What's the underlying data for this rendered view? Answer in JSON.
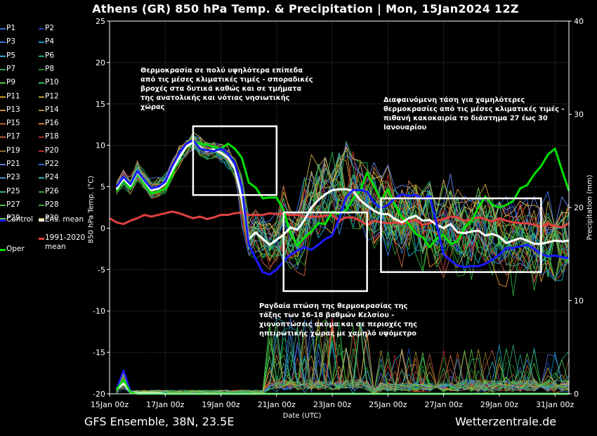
{
  "header": {
    "title": "Athens  (GR)  850 hPa Temp. & Precipitation | Mon, 15Jan2024 12Z"
  },
  "footer": {
    "model": "GFS Ensemble, 38N, 23.5E",
    "site": "Wetterzentrale.de"
  },
  "legend": {
    "members": [
      "P1",
      "P2",
      "P3",
      "P4",
      "P5",
      "P6",
      "P7",
      "P8",
      "P9",
      "P10",
      "P11",
      "P12",
      "P13",
      "P14",
      "P15",
      "P16",
      "P17",
      "P18",
      "P19",
      "P20",
      "P21",
      "P22",
      "P23",
      "P24",
      "P25",
      "P26",
      "P27",
      "P28",
      "P29",
      "P30"
    ],
    "member_colors": [
      "#4169e1",
      "#1e3caa",
      "#3a6fd8",
      "#0fa0c8",
      "#2aa9c9",
      "#1aa38a",
      "#22a34a",
      "#1e8c1e",
      "#4bbf3b",
      "#2fbf5a",
      "#c9a227",
      "#b59a3a",
      "#d48a2a",
      "#a8823a",
      "#c0602a",
      "#d07b3f",
      "#b85a3e",
      "#b03030",
      "#8c6b2a",
      "#b8282c",
      "#5c7bd8",
      "#2c6fd2",
      "#3f8fd2",
      "#2bb0b8",
      "#3bb07a",
      "#2a9f3e",
      "#4ec04e",
      "#3aaa3a",
      "#62c24a",
      "#c9b25a"
    ],
    "control": "Control",
    "ens_mean": "Ens. mean",
    "climate": "1991-2020\nmean",
    "oper": "Oper"
  },
  "annotations": [
    "Θερμοκρασία σε πολύ υψηλότερα επίπεδα\nαπό τις μέσες κλιματικές τιμές - σποραδικές\nβροχές στα δυτικά καθώς και σε τμήματα\nτης ανατολικής και νότιας νησιωτικής\nχώρας",
    "Διαφαινόμενη τάση για χαμηλότερες\nθερμοκρασίες από τις μέσες κλιματικές τιμές -\nπιθανή κακοκαιρία το διάστημα 27 έως 30\nΙανουαρίου",
    "Ραγδαία πτώση της θερμοκρασίας της\nτάξης των 16-18 βαθμών Κελσίου -\nχιονοπτώσεις ακόμα και σε περιοχές της\nηπειρωτικής χώρας με χαμηλό υψόμετρο"
  ],
  "chart_data": {
    "type": "line",
    "title": "Athens  (GR)  850 hPa Temp. & Precipitation | Mon, 15Jan2024 12Z",
    "xlabel": "Date (UTC)",
    "ylabel": "850 hPa Temp. (°C)",
    "y2label": "Precipitation (mm)",
    "x_range_hours": [
      0,
      396
    ],
    "x_ticks": [
      "15Jan 00z",
      "17Jan 00z",
      "19Jan 00z",
      "21Jan 00z",
      "23Jan 00z",
      "25Jan 00z",
      "27Jan 00z",
      "29Jan 00z",
      "31Jan 00z"
    ],
    "x_tick_hours": [
      0,
      48,
      96,
      144,
      192,
      240,
      288,
      336,
      384
    ],
    "ylim": [
      -20,
      25
    ],
    "y_ticks": [
      -20,
      -15,
      -10,
      -5,
      0,
      5,
      10,
      15,
      20,
      25
    ],
    "y2lim": [
      0,
      40
    ],
    "y2_ticks": [
      0,
      10,
      20,
      30,
      40
    ],
    "grid": true,
    "series": [
      {
        "name": "Ens. mean",
        "color": "#ffffff",
        "x": [
          6,
          12,
          18,
          24,
          30,
          36,
          42,
          48,
          54,
          60,
          66,
          72,
          78,
          84,
          90,
          96,
          102,
          108,
          114,
          120,
          126,
          132,
          138,
          144,
          150,
          156,
          162,
          168,
          174,
          180,
          186,
          192,
          198,
          204,
          210,
          216,
          222,
          228,
          234,
          240,
          246,
          252,
          258,
          264,
          270,
          276,
          282,
          288,
          294,
          300,
          306,
          312,
          318,
          324,
          330,
          336,
          342,
          348,
          354,
          360,
          366,
          372,
          378,
          384,
          390,
          396
        ],
        "y": [
          4.7,
          6,
          5.1,
          6.8,
          5.7,
          4.6,
          4.8,
          5.4,
          7,
          8.5,
          9.8,
          10.4,
          9.8,
          9.3,
          9.5,
          9.1,
          8.5,
          7.2,
          3.5,
          -1.3,
          -0.5,
          -1.3,
          -2,
          -1.4,
          -0.8,
          0.1,
          -0.2,
          1,
          2.5,
          3.4,
          4.1,
          4.6,
          4.7,
          4.7,
          4.5,
          3.4,
          2.7,
          2.1,
          1.7,
          1.7,
          1.1,
          0.7,
          1.2,
          1.5,
          0.9,
          1,
          0.4,
          0,
          0.5,
          -0.5,
          -0.6,
          -0.4,
          -0.3,
          -0.9,
          -0.7,
          -1,
          -1.8,
          -1.5,
          -1.2,
          -1.5,
          -1.9,
          -1.9,
          -1.7,
          -1.5,
          -1.6,
          -1.5
        ]
      },
      {
        "name": "Control",
        "color": "#1a1aff",
        "x": [
          6,
          12,
          18,
          24,
          30,
          36,
          42,
          48,
          54,
          60,
          66,
          72,
          78,
          84,
          90,
          96,
          102,
          108,
          114,
          120,
          126,
          132,
          138,
          144,
          150,
          156,
          162,
          168,
          174,
          180,
          186,
          192,
          198,
          204,
          210,
          216,
          222,
          228,
          234,
          240,
          246,
          252,
          258,
          264,
          270,
          276,
          282,
          288,
          294,
          300,
          306,
          312,
          318,
          324,
          330,
          336,
          342,
          348,
          354,
          360,
          366,
          372,
          378,
          384,
          390,
          396
        ],
        "y": [
          5,
          6.2,
          5.3,
          6.9,
          5.8,
          4.8,
          5,
          5.6,
          7.5,
          9,
          10.2,
          10.6,
          9.6,
          9.4,
          9.3,
          9.6,
          9,
          7.8,
          5,
          -2,
          -3.7,
          -5.3,
          -5.6,
          -5,
          -4,
          -3.2,
          -2.7,
          -2.3,
          -2.6,
          -2,
          -1.3,
          -0.9,
          1.2,
          3.8,
          4.6,
          4.6,
          4.4,
          3.1,
          2.4,
          2.8,
          3.6,
          4.1,
          3.9,
          4,
          3.5,
          3.9,
          0.5,
          -3.2,
          -3.9,
          -4.5,
          -4.7,
          -4.6,
          -4.6,
          -4.3,
          -3.8,
          -3.2,
          -2.4,
          -2.4,
          -2.2,
          -2,
          -2.5,
          -3.1,
          -3.4,
          -3.3,
          -3.5,
          -3.6
        ]
      },
      {
        "name": "Oper",
        "color": "#00e000",
        "x": [
          6,
          12,
          18,
          24,
          30,
          36,
          42,
          48,
          54,
          60,
          66,
          72,
          78,
          84,
          90,
          96,
          102,
          108,
          114,
          120,
          126,
          132,
          138,
          144,
          150,
          156,
          162,
          168,
          174,
          180,
          186,
          192,
          198,
          204,
          210,
          216,
          222,
          228,
          234,
          240,
          246,
          252,
          258,
          264,
          270,
          276,
          282,
          288,
          294,
          300,
          306,
          312,
          318,
          324,
          330,
          336,
          342,
          348,
          354,
          360,
          366,
          372,
          378,
          384,
          390,
          396
        ],
        "y": [
          4.5,
          5.8,
          4.8,
          6.7,
          5.4,
          4.2,
          4.4,
          4.8,
          6.5,
          8.4,
          9.7,
          10.4,
          10.2,
          10.1,
          9.8,
          9.6,
          10.2,
          9.6,
          8.5,
          5.5,
          4.9,
          3.6,
          3.7,
          3.7,
          2.2,
          -0.7,
          -2.1,
          -1.1,
          -0.4,
          0.6,
          0.5,
          2,
          1.7,
          2.2,
          3.5,
          4.5,
          6.7,
          5.1,
          3.4,
          4.7,
          2.8,
          1.3,
          0.5,
          -0.7,
          -1.1,
          -2.3,
          -1.2,
          -0.8,
          -1.9,
          -1.6,
          0.1,
          0.9,
          2.5,
          3.8,
          2.8,
          2.5,
          2.8,
          3.3,
          4.8,
          5.2,
          6.5,
          7.5,
          8.9,
          9.6,
          7,
          4.5
        ]
      },
      {
        "name": "1991-2020 mean",
        "color": "#e04040",
        "x": [
          0,
          6,
          12,
          18,
          24,
          30,
          36,
          42,
          48,
          54,
          60,
          66,
          72,
          78,
          84,
          90,
          96,
          102,
          108,
          114,
          120,
          126,
          132,
          138,
          144,
          150,
          156,
          162,
          168,
          174,
          180,
          186,
          192,
          198,
          204,
          210,
          216,
          222,
          228,
          234,
          240,
          246,
          252,
          258,
          264,
          270,
          276,
          282,
          288,
          294,
          300,
          306,
          312,
          318,
          324,
          330,
          336,
          342,
          348,
          354,
          360,
          366,
          372,
          378,
          384,
          390,
          396
        ],
        "y": [
          1.2,
          0.7,
          0.5,
          0.9,
          1.2,
          1.6,
          1.4,
          1.6,
          1.8,
          2,
          1.8,
          1.5,
          1.2,
          1.4,
          1.1,
          1.3,
          1.6,
          1.6,
          1.8,
          1.9,
          1.6,
          1.6,
          1.6,
          1.8,
          1.7,
          1.7,
          1.6,
          1.6,
          1.4,
          1.4,
          1.4,
          1.5,
          1.6,
          0.9,
          1.3,
          1.3,
          0.9,
          0.4,
          0.9,
          0.7,
          0.6,
          0.7,
          0.5,
          0.8,
          1,
          0.4,
          0.6,
          0.9,
          1.1,
          1.4,
          1.3,
          0.9,
          1.1,
          1.3,
          1.1,
          0.8,
          1.2,
          0.9,
          0.7,
          0.6,
          0.6,
          0.4,
          0.2,
          0.5,
          0.3,
          0.1,
          0.6
        ]
      }
    ],
    "precipitation": [
      {
        "name": "Control",
        "color": "#1a1aff",
        "x": [
          6,
          12,
          18,
          24,
          30,
          36,
          42,
          48,
          54,
          60,
          66,
          72,
          78,
          84,
          90,
          96,
          102,
          108,
          114,
          120,
          126,
          132,
          138,
          144,
          150,
          156,
          162,
          168,
          174,
          180,
          186,
          192,
          198,
          204,
          210,
          216,
          222,
          228,
          234,
          240,
          246,
          252,
          258,
          264,
          270,
          276,
          282,
          288,
          294,
          300,
          306,
          312,
          318,
          324,
          330,
          336,
          342,
          348,
          354,
          360,
          366,
          372,
          378,
          384,
          390,
          396
        ],
        "y": [
          0.5,
          2.5,
          0.3,
          0,
          0,
          0,
          0,
          0,
          0,
          0,
          0,
          0,
          0,
          0,
          0,
          0,
          0,
          0,
          0,
          0,
          0,
          0,
          0,
          0,
          0,
          0,
          0,
          0,
          0,
          0,
          0,
          0,
          0,
          0,
          0,
          0,
          0,
          0,
          0,
          0,
          0,
          0,
          0,
          0,
          0,
          0,
          0,
          0,
          0,
          0,
          0,
          0,
          0,
          0,
          0,
          0,
          0,
          0,
          0,
          0,
          0,
          0,
          0,
          0,
          0,
          0
        ]
      },
      {
        "name": "Ens. mean",
        "color": "#ffffff",
        "x": [
          6,
          12,
          18,
          24,
          30,
          36,
          42,
          48,
          54,
          60,
          66,
          72,
          78,
          84,
          90,
          96,
          102,
          108,
          114,
          120,
          126,
          132,
          138,
          144,
          150,
          156,
          162,
          168,
          174,
          180,
          186,
          192,
          198,
          204,
          210,
          216,
          222,
          228,
          234,
          240,
          246,
          252,
          258,
          264,
          270,
          276,
          282,
          288,
          294,
          300,
          306,
          312,
          318,
          324,
          330,
          336,
          342,
          348,
          354,
          360,
          366,
          372,
          378,
          384,
          390,
          396
        ],
        "y": [
          0.5,
          1.1,
          0.2,
          0.1,
          0.1,
          0.1,
          0.1,
          0,
          0,
          0,
          0,
          0,
          0,
          0,
          0,
          0,
          0,
          0,
          0,
          0,
          0,
          0,
          0,
          0,
          0,
          0,
          0,
          0,
          0,
          0,
          0,
          0,
          0,
          0,
          0,
          0,
          0,
          0,
          0,
          0,
          0,
          0,
          0,
          0,
          0,
          0,
          0,
          0,
          0,
          0,
          0,
          0,
          0,
          0,
          0,
          0,
          0,
          0,
          0,
          0,
          0,
          0,
          0,
          0,
          0,
          0
        ]
      },
      {
        "name": "Oper",
        "color": "#00e000",
        "x": [
          6,
          12,
          18,
          24,
          30,
          36,
          42,
          48,
          54,
          60,
          66,
          72,
          78,
          84,
          90,
          96,
          102,
          108,
          114,
          120,
          126,
          132,
          138,
          144,
          150,
          156,
          162,
          168,
          174,
          180,
          186,
          192,
          198,
          204,
          210,
          216,
          222,
          228,
          234,
          240,
          246,
          252,
          258,
          264,
          270,
          276,
          282,
          288,
          294,
          300,
          306,
          312,
          318,
          324,
          330,
          336,
          342,
          348,
          354,
          360,
          366,
          372,
          378,
          384,
          390,
          396
        ],
        "y": [
          0.5,
          1.5,
          0.2,
          0,
          0,
          0,
          0,
          0,
          0,
          0,
          0,
          0,
          0,
          0,
          0,
          0,
          0,
          0,
          0,
          0,
          0,
          0,
          0,
          0,
          0,
          0,
          0,
          0,
          0,
          0,
          0,
          0,
          0,
          0,
          0,
          0,
          0,
          0,
          0,
          0,
          0,
          0,
          0,
          0,
          0,
          0,
          0,
          0,
          0,
          0,
          0,
          0,
          0,
          0,
          0,
          0,
          0,
          0,
          0,
          0,
          0,
          0,
          0,
          0,
          0,
          0
        ]
      }
    ],
    "highlight_boxes": [
      {
        "x": [
          72,
          144
        ],
        "y": [
          4,
          12.3
        ]
      },
      {
        "x": [
          150,
          222
        ],
        "y": [
          -7.6,
          1.9
        ]
      },
      {
        "x": [
          234,
          372
        ],
        "y": [
          -5.3,
          3.6
        ]
      }
    ]
  }
}
